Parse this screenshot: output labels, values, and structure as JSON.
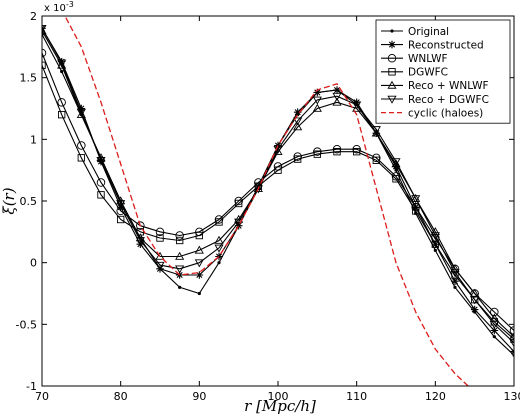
{
  "chart_data": {
    "type": "line",
    "xlabel": "r [Mpc/h]",
    "ylabel": "ξ(r)",
    "y_multiplier": "x 10^-3",
    "xlim": [
      70,
      130
    ],
    "ylim": [
      -1,
      2
    ],
    "xticks": [
      "70",
      "80",
      "90",
      "100",
      "110",
      "120",
      "130"
    ],
    "yticks": [
      "-1",
      "-0.5",
      "0",
      "0.5",
      "1",
      "1.5",
      "2"
    ],
    "grid": false,
    "legend_position": "top-right",
    "x": [
      70,
      72.5,
      75,
      77.5,
      80,
      82.5,
      85,
      87.5,
      90,
      92.5,
      95,
      97.5,
      100,
      102.5,
      105,
      107.5,
      110,
      112.5,
      115,
      117.5,
      120,
      122.5,
      125,
      127.5,
      130
    ],
    "series": [
      {
        "name": "Original",
        "color": "#000000",
        "dash": "solid",
        "marker": "dot",
        "values": [
          1.85,
          1.55,
          1.2,
          0.85,
          0.5,
          0.2,
          -0.05,
          -0.2,
          -0.25,
          0.0,
          0.3,
          0.6,
          0.95,
          1.2,
          1.38,
          1.4,
          1.28,
          1.05,
          0.75,
          0.4,
          0.1,
          -0.2,
          -0.4,
          -0.6,
          -0.75
        ]
      },
      {
        "name": "Reconstructed",
        "color": "#000000",
        "dash": "solid",
        "marker": "star",
        "values": [
          1.9,
          1.63,
          1.25,
          0.82,
          0.45,
          0.15,
          -0.05,
          -0.1,
          -0.1,
          0.05,
          0.3,
          0.62,
          0.95,
          1.22,
          1.38,
          1.4,
          1.3,
          1.05,
          0.78,
          0.45,
          0.15,
          -0.15,
          -0.38,
          -0.55,
          -0.72
        ]
      },
      {
        "name": "WNLWF",
        "color": "#000000",
        "dash": "solid",
        "marker": "circle",
        "values": [
          1.7,
          1.3,
          0.95,
          0.65,
          0.42,
          0.3,
          0.25,
          0.22,
          0.25,
          0.35,
          0.5,
          0.65,
          0.78,
          0.86,
          0.9,
          0.92,
          0.92,
          0.85,
          0.7,
          0.45,
          0.2,
          -0.05,
          -0.25,
          -0.4,
          -0.55
        ]
      },
      {
        "name": "DGWFC",
        "color": "#000000",
        "dash": "solid",
        "marker": "square",
        "values": [
          1.6,
          1.2,
          0.85,
          0.55,
          0.35,
          0.25,
          0.2,
          0.18,
          0.22,
          0.33,
          0.48,
          0.62,
          0.75,
          0.84,
          0.88,
          0.9,
          0.9,
          0.83,
          0.68,
          0.42,
          0.15,
          -0.1,
          -0.3,
          -0.48,
          -0.62
        ]
      },
      {
        "name": "Reco + WNLWF",
        "color": "#000000",
        "dash": "solid",
        "marker": "triangle-up",
        "values": [
          1.88,
          1.6,
          1.2,
          0.85,
          0.5,
          0.2,
          0.05,
          0.05,
          0.1,
          0.18,
          0.35,
          0.6,
          0.9,
          1.1,
          1.25,
          1.3,
          1.25,
          1.05,
          0.8,
          0.52,
          0.25,
          -0.05,
          -0.25,
          -0.45,
          -0.6
        ]
      },
      {
        "name": "Reco + DGWFC",
        "color": "#000000",
        "dash": "solid",
        "marker": "triangle-down",
        "values": [
          1.9,
          1.62,
          1.22,
          0.83,
          0.48,
          0.18,
          -0.02,
          -0.05,
          0.0,
          0.12,
          0.33,
          0.6,
          0.92,
          1.15,
          1.32,
          1.35,
          1.28,
          1.08,
          0.82,
          0.52,
          0.22,
          -0.08,
          -0.3,
          -0.5,
          -0.65
        ]
      },
      {
        "name": "cyclic (haloes)",
        "color": "#dd1c1c",
        "dash": "dashed",
        "marker": "none",
        "values": [
          2.2,
          2.05,
          1.75,
          1.3,
          0.8,
          0.3,
          0.05,
          -0.1,
          -0.08,
          0.05,
          0.3,
          0.6,
          0.95,
          1.2,
          1.4,
          1.45,
          1.2,
          0.6,
          0.0,
          -0.4,
          -0.7,
          -0.9,
          -1.05,
          -1.15,
          -1.25
        ]
      }
    ]
  }
}
